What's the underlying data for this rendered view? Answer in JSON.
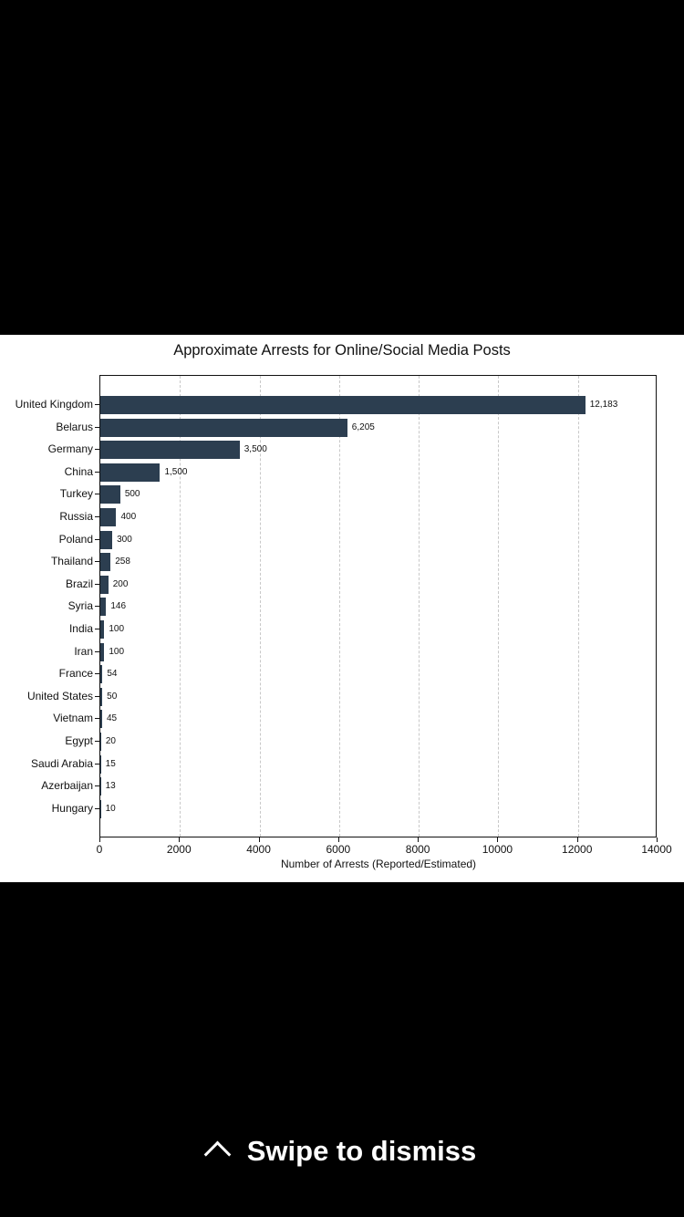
{
  "overlay": {
    "dismiss_label": "Swipe to dismiss",
    "dismiss_icon": "chevron-up-icon"
  },
  "chart_data": {
    "type": "bar",
    "orientation": "horizontal",
    "title": "Approximate Arrests for Online/Social Media Posts",
    "xlabel": "Number of Arrests (Reported/Estimated)",
    "ylabel": "",
    "xlim": [
      0,
      14000
    ],
    "xticks": [
      "0",
      "2000",
      "4000",
      "6000",
      "8000",
      "10000",
      "12000",
      "14000"
    ],
    "grid": "vertical dashed",
    "bar_color": "#2c3e50",
    "categories": [
      "United Kingdom",
      "Belarus",
      "Germany",
      "China",
      "Turkey",
      "Russia",
      "Poland",
      "Thailand",
      "Brazil",
      "Syria",
      "India",
      "Iran",
      "France",
      "United States",
      "Vietnam",
      "Egypt",
      "Saudi Arabia",
      "Azerbaijan",
      "Hungary"
    ],
    "values": [
      12183,
      6205,
      3500,
      1500,
      500,
      400,
      300,
      258,
      200,
      146,
      100,
      100,
      54,
      50,
      45,
      20,
      15,
      13,
      10
    ],
    "value_labels": [
      "12,183",
      "6,205",
      "3,500",
      "1,500",
      "500",
      "400",
      "300",
      "258",
      "200",
      "146",
      "100",
      "100",
      "54",
      "50",
      "45",
      "20",
      "15",
      "13",
      "10"
    ]
  }
}
